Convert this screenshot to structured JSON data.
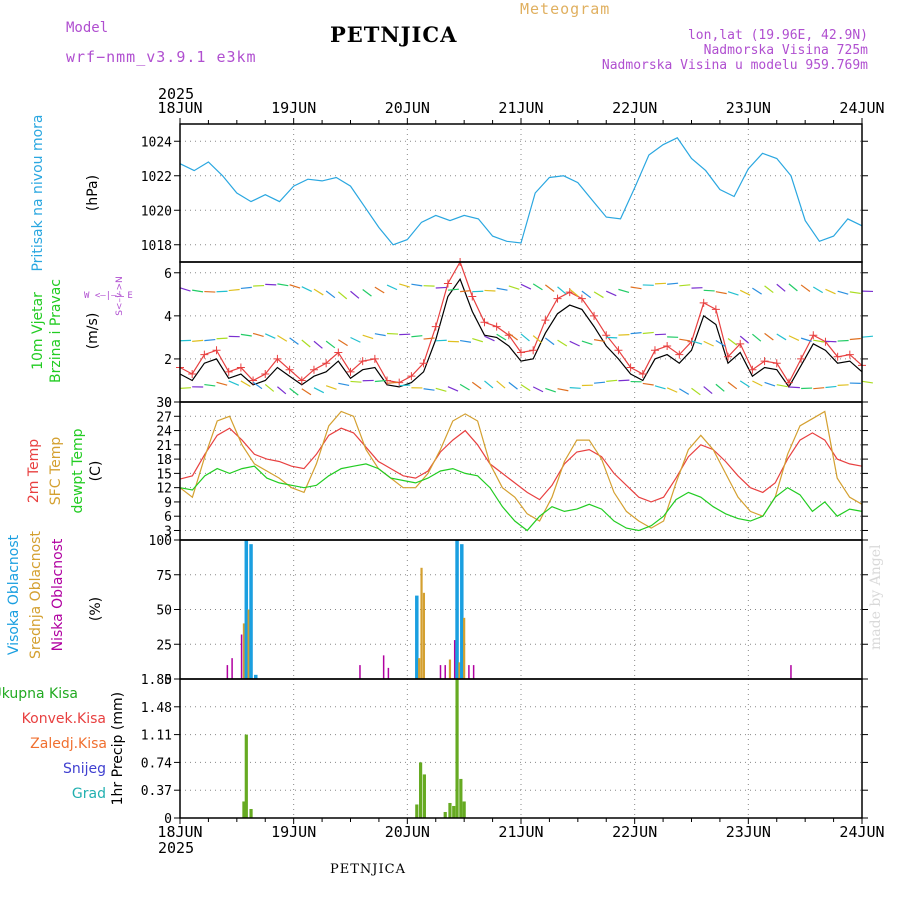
{
  "header": {
    "model_label": "Model",
    "model_name": "wrf−nmm_v3.9.1  e3km",
    "station": "PETNJICA",
    "title": "Meteogram",
    "lonlat": "lon,lat (19.96E, 42.9N)",
    "elevation": "Nadmorska Visina 725m",
    "elevation_model": "Nadmorska Visina u modelu 959.769m",
    "year": "2025"
  },
  "footer": {
    "station": "PETNJICA",
    "credit": "made by Angel"
  },
  "colors": {
    "pressure": "#2aa7e0",
    "wind_black": "#000000",
    "wind_red": "#e84040",
    "t2m": "#e84040",
    "sfc": "#d4a030",
    "dewpt": "#22cc22",
    "high_cloud": "#1a9fe0",
    "mid_cloud": "#d4a030",
    "low_cloud": "#b000a0",
    "total_precip": "#66aa22",
    "conv_precip": "#e84040"
  },
  "chart_data": [
    {
      "type": "line",
      "id": "pressure",
      "ylabel_main": "Pritisak na nivou mora",
      "ylabel_unit": "(hPa)",
      "ylim": [
        1017,
        1025
      ],
      "yticks": [
        "1018",
        "1020",
        "1022",
        "1024"
      ],
      "x_ticks": [
        "18JUN",
        "19JUN",
        "20JUN",
        "21JUN",
        "22JUN",
        "23JUN",
        "24JUN"
      ],
      "x_hours": [
        0,
        3,
        6,
        9,
        12,
        15,
        18,
        21,
        24,
        27,
        30,
        33,
        36,
        39,
        42,
        45,
        48,
        51,
        54,
        57,
        60,
        63,
        66,
        69,
        72,
        75,
        78,
        81,
        84,
        87,
        90,
        93,
        96,
        99,
        102,
        105,
        108,
        111,
        114,
        117,
        120,
        123,
        126,
        129,
        132,
        135,
        138,
        141,
        144
      ],
      "series": [
        {
          "name": "pressure",
          "values": [
            1022.7,
            1022.3,
            1022.8,
            1022.0,
            1021.0,
            1020.5,
            1020.9,
            1020.5,
            1021.4,
            1021.8,
            1021.7,
            1021.9,
            1021.4,
            1020.2,
            1019.0,
            1018.0,
            1018.3,
            1019.3,
            1019.7,
            1019.4,
            1019.7,
            1019.5,
            1018.5,
            1018.2,
            1018.1,
            1021.0,
            1021.9,
            1022.0,
            1021.6,
            1020.6,
            1019.6,
            1019.5,
            1021.3,
            1023.2,
            1023.8,
            1024.2,
            1023.0,
            1022.3,
            1021.2,
            1020.8,
            1022.4,
            1023.3,
            1023.0,
            1022.0,
            1019.4,
            1018.2,
            1018.5,
            1019.5,
            1019.1
          ]
        }
      ]
    },
    {
      "type": "line",
      "id": "wind",
      "ylabel_main": "10m Vjetar",
      "ylabel_sub": "Brzina i Pravac",
      "ylabel_unit": "(m/s)",
      "compass_label": "W <–|–> E",
      "compass_side": "S<–|–>N",
      "ylim": [
        0,
        6.5
      ],
      "yticks": [
        "0",
        "2",
        "4",
        "6"
      ],
      "series": [
        {
          "name": "speed",
          "values": [
            1.3,
            1.0,
            1.8,
            2.0,
            1.1,
            1.3,
            0.8,
            1.0,
            1.6,
            1.2,
            0.8,
            1.2,
            1.4,
            1.9,
            1.1,
            1.5,
            1.6,
            0.8,
            0.7,
            0.9,
            1.4,
            2.9,
            4.9,
            5.7,
            4.2,
            3.1,
            3.0,
            2.6,
            1.9,
            2.0,
            3.2,
            4.1,
            4.5,
            4.3,
            3.5,
            2.6,
            2.0,
            1.3,
            1.0,
            2.0,
            2.2,
            1.8,
            2.4,
            4.0,
            3.6,
            1.8,
            2.3,
            1.2,
            1.6,
            1.5,
            0.7,
            1.7,
            2.7,
            2.4,
            1.8,
            1.9,
            1.4
          ]
        },
        {
          "name": "gust",
          "values": [
            1.6,
            1.3,
            2.2,
            2.4,
            1.4,
            1.6,
            1.0,
            1.3,
            2.0,
            1.5,
            1.0,
            1.5,
            1.8,
            2.3,
            1.4,
            1.9,
            2.0,
            1.0,
            0.9,
            1.2,
            1.8,
            3.5,
            5.5,
            6.5,
            4.9,
            3.7,
            3.5,
            3.1,
            2.3,
            2.4,
            3.8,
            4.8,
            5.1,
            4.8,
            4.0,
            3.1,
            2.4,
            1.6,
            1.3,
            2.4,
            2.6,
            2.2,
            2.8,
            4.6,
            4.3,
            2.1,
            2.7,
            1.5,
            1.9,
            1.8,
            0.9,
            2.0,
            3.1,
            2.8,
            2.1,
            2.2,
            1.7
          ]
        }
      ]
    },
    {
      "type": "line",
      "id": "temperature",
      "ylabel_main": "2m Temp",
      "ylabel_sub": "SFC Temp",
      "ylabel_sub2": "dewpt Temp",
      "ylabel_unit": "(C)",
      "ylim": [
        1,
        30
      ],
      "yticks": [
        "3",
        "6",
        "9",
        "12",
        "15",
        "18",
        "21",
        "24",
        "27",
        "30"
      ],
      "series": [
        {
          "name": "t2m",
          "values": [
            13.8,
            14.5,
            19.0,
            23.0,
            24.5,
            22.0,
            19.0,
            18.0,
            17.5,
            16.5,
            16.0,
            19.0,
            23.0,
            24.5,
            23.5,
            20.5,
            17.5,
            16.0,
            14.5,
            14.0,
            15.5,
            19.5,
            22.0,
            24.0,
            21.0,
            17.0,
            15.0,
            13.0,
            11.0,
            9.5,
            12.5,
            17.0,
            19.5,
            20.0,
            18.5,
            15.0,
            12.5,
            10.0,
            9.0,
            10.0,
            14.0,
            18.5,
            21.0,
            20.0,
            17.5,
            14.5,
            12.0,
            11.0,
            13.0,
            18.0,
            22.0,
            23.5,
            22.0,
            18.0,
            17.0,
            16.5
          ]
        },
        {
          "name": "sfc",
          "values": [
            12.0,
            10.0,
            18.5,
            26.0,
            27.0,
            21.0,
            17.0,
            15.5,
            14.0,
            12.0,
            11.0,
            17.0,
            25.0,
            28.0,
            27.0,
            20.0,
            16.0,
            14.0,
            12.0,
            12.0,
            15.0,
            20.0,
            26.0,
            27.5,
            26.0,
            17.0,
            12.0,
            10.0,
            6.5,
            5.0,
            10.0,
            17.5,
            22.0,
            22.0,
            18.0,
            11.0,
            7.0,
            5.0,
            3.5,
            5.0,
            13.0,
            20.0,
            23.0,
            20.0,
            15.0,
            10.0,
            7.0,
            6.0,
            10.0,
            19.0,
            25.0,
            26.5,
            28.0,
            14.0,
            10.0,
            8.5
          ]
        },
        {
          "name": "dewpt",
          "values": [
            12.0,
            11.5,
            14.5,
            16.0,
            15.0,
            16.0,
            16.5,
            14.0,
            13.0,
            12.5,
            12.0,
            12.5,
            14.5,
            16.0,
            16.5,
            17.0,
            16.0,
            14.0,
            13.5,
            13.0,
            14.0,
            15.5,
            16.0,
            15.0,
            14.5,
            12.0,
            8.0,
            5.0,
            3.0,
            6.0,
            8.0,
            7.0,
            7.5,
            8.5,
            7.5,
            5.0,
            3.5,
            3.0,
            4.0,
            6.0,
            9.5,
            11.0,
            10.0,
            8.0,
            6.5,
            5.5,
            5.0,
            6.0,
            10.0,
            12.0,
            10.5,
            7.0,
            9.0,
            6.0,
            7.5,
            7.0
          ]
        }
      ]
    },
    {
      "type": "bar",
      "id": "clouds",
      "ylabel_main": "Visoka Oblacnost",
      "ylabel_sub": "Srednja Oblacnost",
      "ylabel_sub2": "Niska Oblacnost",
      "ylabel_unit": "(%)",
      "ylim": [
        0,
        100
      ],
      "yticks": [
        "0",
        "25",
        "50",
        "75",
        "100"
      ],
      "bars": [
        {
          "hour": 10.0,
          "series": "low",
          "value": 10
        },
        {
          "hour": 11.0,
          "series": "low",
          "value": 15
        },
        {
          "hour": 13.0,
          "series": "low",
          "value": 32
        },
        {
          "hour": 13.5,
          "series": "mid",
          "value": 40
        },
        {
          "hour": 14.0,
          "series": "high",
          "value": 100
        },
        {
          "hour": 14.5,
          "series": "mid",
          "value": 50
        },
        {
          "hour": 15.0,
          "series": "high",
          "value": 97
        },
        {
          "hour": 16.0,
          "series": "high",
          "value": 3
        },
        {
          "hour": 38.0,
          "series": "low",
          "value": 10
        },
        {
          "hour": 43.0,
          "series": "low",
          "value": 17
        },
        {
          "hour": 44.0,
          "series": "low",
          "value": 8
        },
        {
          "hour": 50.0,
          "series": "high",
          "value": 60
        },
        {
          "hour": 50.5,
          "series": "mid",
          "value": 15
        },
        {
          "hour": 51.0,
          "series": "mid",
          "value": 80
        },
        {
          "hour": 51.5,
          "series": "mid",
          "value": 62
        },
        {
          "hour": 55.0,
          "series": "low",
          "value": 10
        },
        {
          "hour": 56.0,
          "series": "low",
          "value": 10
        },
        {
          "hour": 57.0,
          "series": "mid",
          "value": 14
        },
        {
          "hour": 58.0,
          "series": "low",
          "value": 28
        },
        {
          "hour": 58.5,
          "series": "high",
          "value": 100
        },
        {
          "hour": 59.0,
          "series": "mid",
          "value": 12
        },
        {
          "hour": 59.5,
          "series": "high",
          "value": 97
        },
        {
          "hour": 60.0,
          "series": "mid",
          "value": 44
        },
        {
          "hour": 61.0,
          "series": "low",
          "value": 10
        },
        {
          "hour": 62.0,
          "series": "low",
          "value": 10
        },
        {
          "hour": 129.0,
          "series": "low",
          "value": 10
        }
      ]
    },
    {
      "type": "bar",
      "id": "precip",
      "legend": [
        "Ukupna Kisa",
        "Konvek.Kisa",
        "Zaledj.Kisa",
        "Snijeg",
        "Grad"
      ],
      "ylabel_main": "1hr Precip",
      "ylabel_unit": "(mm)",
      "ylim": [
        0,
        1.85
      ],
      "yticks": [
        "0",
        "0.37",
        "0.74",
        "1.11",
        "1.48",
        "1.85"
      ],
      "bars": [
        {
          "hour": 13.5,
          "series": "total",
          "value": 0.22
        },
        {
          "hour": 14.0,
          "series": "total",
          "value": 1.11
        },
        {
          "hour": 15.0,
          "series": "total",
          "value": 0.12
        },
        {
          "hour": 50.0,
          "series": "total",
          "value": 0.18
        },
        {
          "hour": 50.8,
          "series": "total",
          "value": 0.74
        },
        {
          "hour": 51.6,
          "series": "total",
          "value": 0.58
        },
        {
          "hour": 56.0,
          "series": "total",
          "value": 0.08
        },
        {
          "hour": 57.0,
          "series": "total",
          "value": 0.2
        },
        {
          "hour": 57.8,
          "series": "total",
          "value": 0.16
        },
        {
          "hour": 58.5,
          "series": "total",
          "value": 1.85
        },
        {
          "hour": 59.3,
          "series": "total",
          "value": 0.52
        },
        {
          "hour": 60.0,
          "series": "total",
          "value": 0.22
        }
      ]
    }
  ]
}
